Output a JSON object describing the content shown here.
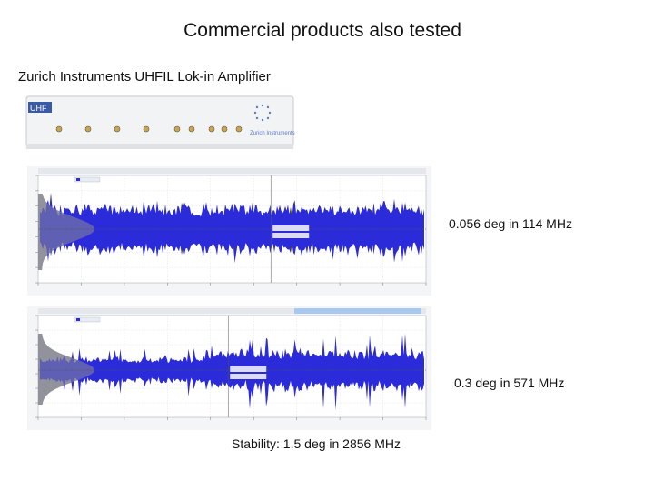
{
  "slide": {
    "title": "Commercial products also tested",
    "subtitle": "Zurich Instruments UHFIL Lok-in Amplifier",
    "captions": {
      "plot1": "0.056 deg in 114 MHz",
      "plot2": "0.3 deg in 571 MHz",
      "plot3": "Stability: 1.5 deg in 2856 MHz"
    }
  },
  "device": {
    "logo_text": "UHF",
    "brand_text": "Zurich Instruments"
  },
  "colors": {
    "signal": "#2b2bd9",
    "histogram": "#8a8a96",
    "background": "#ffffff"
  }
}
